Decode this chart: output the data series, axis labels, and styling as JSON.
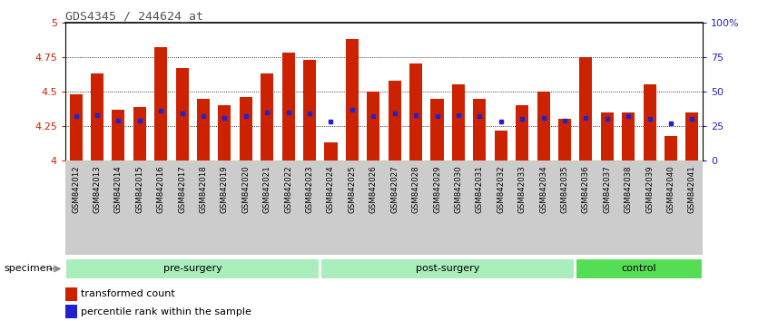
{
  "title": "GDS4345 / 244624_at",
  "samples": [
    "GSM842012",
    "GSM842013",
    "GSM842014",
    "GSM842015",
    "GSM842016",
    "GSM842017",
    "GSM842018",
    "GSM842019",
    "GSM842020",
    "GSM842021",
    "GSM842022",
    "GSM842023",
    "GSM842024",
    "GSM842025",
    "GSM842026",
    "GSM842027",
    "GSM842028",
    "GSM842029",
    "GSM842030",
    "GSM842031",
    "GSM842032",
    "GSM842033",
    "GSM842034",
    "GSM842035",
    "GSM842036",
    "GSM842037",
    "GSM842038",
    "GSM842039",
    "GSM842040",
    "GSM842041"
  ],
  "bar_values": [
    4.48,
    4.63,
    4.37,
    4.39,
    4.82,
    4.67,
    4.45,
    4.4,
    4.46,
    4.63,
    4.78,
    4.73,
    4.13,
    4.88,
    4.5,
    4.58,
    4.7,
    4.45,
    4.55,
    4.45,
    4.22,
    4.4,
    4.5,
    4.3,
    4.75,
    4.35,
    4.35,
    4.55,
    4.18,
    4.35
  ],
  "percentile_values": [
    4.32,
    4.33,
    4.29,
    4.29,
    4.36,
    4.34,
    4.32,
    4.31,
    4.32,
    4.35,
    4.35,
    4.34,
    4.28,
    4.37,
    4.32,
    4.34,
    4.33,
    4.32,
    4.33,
    4.32,
    4.28,
    4.3,
    4.31,
    4.29,
    4.31,
    4.3,
    4.32,
    4.3,
    4.27,
    4.3
  ],
  "ymin": 4.0,
  "ymax": 5.0,
  "yticks": [
    4.0,
    4.25,
    4.5,
    4.75,
    5.0
  ],
  "ytick_labels_left": [
    "4",
    "4.25",
    "4.5",
    "4.75",
    "5"
  ],
  "ytick_labels_right": [
    "0",
    "25",
    "50",
    "75",
    "100%"
  ],
  "bar_color": "#cc2200",
  "dot_color": "#2222cc",
  "plot_bg_color": "#ffffff",
  "title_color": "#555555",
  "left_tick_color": "#cc2200",
  "right_tick_color": "#2222cc",
  "xtick_bg_color": "#cccccc",
  "group_light_color": "#aaeebb",
  "group_dark_color": "#55dd55",
  "group_defs": [
    {
      "label": "pre-surgery",
      "start": 0,
      "end": 12,
      "light": true
    },
    {
      "label": "post-surgery",
      "start": 12,
      "end": 24,
      "light": true
    },
    {
      "label": "control",
      "start": 24,
      "end": 30,
      "light": false
    }
  ]
}
